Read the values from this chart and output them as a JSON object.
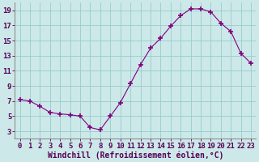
{
  "x": [
    0,
    1,
    2,
    3,
    4,
    5,
    6,
    7,
    8,
    9,
    10,
    11,
    12,
    13,
    14,
    15,
    16,
    17,
    18,
    19,
    20,
    21,
    22,
    23
  ],
  "y": [
    7.2,
    7.0,
    6.3,
    5.5,
    5.3,
    5.2,
    5.0,
    3.5,
    3.2,
    5.0,
    6.8,
    9.3,
    11.8,
    14.0,
    15.3,
    16.9,
    18.3,
    19.2,
    19.2,
    18.8,
    17.3,
    16.2,
    13.3,
    12.0
  ],
  "line_color": "#800080",
  "marker": "+",
  "marker_size": 5,
  "bg_color": "#cce8e8",
  "grid_color": "#99cccc",
  "xlabel": "Windchill (Refroidissement éolien,°C)",
  "xlabel_fontsize": 7,
  "tick_fontsize": 6.5,
  "ylim": [
    2,
    20
  ],
  "xlim": [
    -0.5,
    23.5
  ],
  "yticks": [
    3,
    5,
    7,
    9,
    11,
    13,
    15,
    17,
    19
  ],
  "xticks": [
    0,
    1,
    2,
    3,
    4,
    5,
    6,
    7,
    8,
    9,
    10,
    11,
    12,
    13,
    14,
    15,
    16,
    17,
    18,
    19,
    20,
    21,
    22,
    23
  ]
}
